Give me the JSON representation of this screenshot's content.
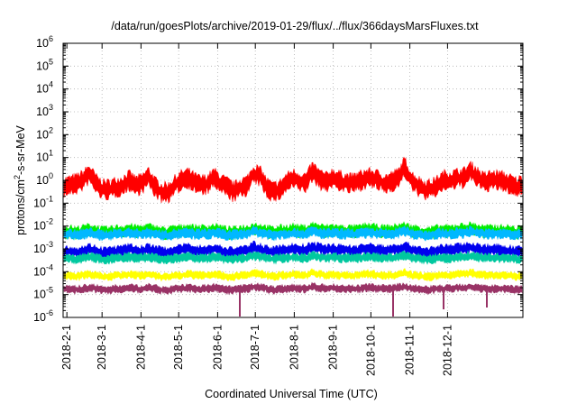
{
  "chart_data": {
    "type": "line",
    "title": "/data/run/goesPlots/archive/2019-01-29/flux/../flux/366daysMarsFluxes.txt",
    "xlabel": "Coordinated Universal Time (UTC)",
    "ylabel": "protons/cm²-s-sr-MeV",
    "ylabel_parts": {
      "pre": "protons/cm",
      "sup": "2",
      "post": "-s-sr-MeV"
    },
    "y_scale": "log",
    "ylim": [
      1e-06,
      1000000.0
    ],
    "y_ticks": [
      {
        "value": 1e-06,
        "base": "10",
        "exp": "-6"
      },
      {
        "value": 1e-05,
        "base": "10",
        "exp": "-5"
      },
      {
        "value": 0.0001,
        "base": "10",
        "exp": "-4"
      },
      {
        "value": 0.001,
        "base": "10",
        "exp": "-3"
      },
      {
        "value": 0.01,
        "base": "10",
        "exp": "-2"
      },
      {
        "value": 0.1,
        "base": "10",
        "exp": "-1"
      },
      {
        "value": 1.0,
        "base": "10",
        "exp": "0"
      },
      {
        "value": 10.0,
        "base": "10",
        "exp": "1"
      },
      {
        "value": 100.0,
        "base": "10",
        "exp": "2"
      },
      {
        "value": 1000.0,
        "base": "10",
        "exp": "3"
      },
      {
        "value": 10000.0,
        "base": "10",
        "exp": "4"
      },
      {
        "value": 100000.0,
        "base": "10",
        "exp": "5"
      },
      {
        "value": 1000000.0,
        "base": "10",
        "exp": "6"
      }
    ],
    "xlim": [
      "2018-01-29",
      "2019-01-30"
    ],
    "x_ticks": [
      "2018-2-1",
      "2018-3-1",
      "2018-4-1",
      "2018-5-1",
      "2018-6-1",
      "2018-7-1",
      "2018-8-1",
      "2018-9-1",
      "2018-10-1",
      "2018-11-1",
      "2018-12-1"
    ],
    "grid": true,
    "legend": "none",
    "series": [
      {
        "color": "#ff0000",
        "values": [
          0.5,
          0.6,
          0.7,
          1.0,
          2.0,
          0.7,
          0.4,
          0.4,
          0.5,
          0.6,
          1.0,
          0.6,
          0.7,
          1.5,
          0.5,
          0.3,
          0.3,
          0.6,
          1.0,
          1.3,
          0.8,
          0.6,
          0.7,
          1.3,
          0.7,
          0.5,
          0.3,
          0.5,
          0.6,
          2.0,
          1.5,
          0.5,
          0.3,
          0.4,
          0.8,
          1.2,
          0.9,
          0.8,
          2.5,
          1.2,
          0.8,
          1.3,
          1.0,
          0.8,
          0.7,
          0.9,
          1.2,
          1.2,
          1.0,
          0.7,
          0.9,
          1.2,
          4.0,
          1.0,
          0.6,
          0.4,
          0.4,
          0.6,
          1.0,
          1.0,
          1.2,
          1.3,
          2.5,
          1.5,
          0.8,
          1.0,
          1.0,
          0.9,
          0.7,
          0.5,
          0.7
        ]
      },
      {
        "color": "#00ee00",
        "values": [
          0.005,
          0.006,
          0.005,
          0.006,
          0.007,
          0.006,
          0.005,
          0.005,
          0.006,
          0.006,
          0.007,
          0.006,
          0.006,
          0.007,
          0.006,
          0.005,
          0.005,
          0.006,
          0.006,
          0.007,
          0.006,
          0.006,
          0.006,
          0.007,
          0.006,
          0.005,
          0.005,
          0.006,
          0.006,
          0.008,
          0.007,
          0.006,
          0.005,
          0.006,
          0.006,
          0.007,
          0.006,
          0.006,
          0.008,
          0.007,
          0.006,
          0.007,
          0.006,
          0.006,
          0.006,
          0.006,
          0.007,
          0.007,
          0.006,
          0.006,
          0.006,
          0.007,
          0.008,
          0.006,
          0.006,
          0.005,
          0.005,
          0.006,
          0.006,
          0.006,
          0.007,
          0.007,
          0.008,
          0.007,
          0.006,
          0.006,
          0.006,
          0.006,
          0.006,
          0.005,
          0.006
        ]
      },
      {
        "color": "#00b8ff",
        "values": [
          0.004,
          0.0045,
          0.004,
          0.0045,
          0.005,
          0.0045,
          0.004,
          0.004,
          0.0045,
          0.0045,
          0.005,
          0.0045,
          0.0045,
          0.005,
          0.0045,
          0.004,
          0.004,
          0.0045,
          0.0045,
          0.005,
          0.0045,
          0.0045,
          0.0045,
          0.005,
          0.0045,
          0.004,
          0.004,
          0.0045,
          0.0045,
          0.006,
          0.005,
          0.0045,
          0.004,
          0.0045,
          0.0045,
          0.005,
          0.0045,
          0.0045,
          0.006,
          0.005,
          0.0045,
          0.005,
          0.0045,
          0.0045,
          0.0045,
          0.0045,
          0.005,
          0.005,
          0.0045,
          0.0045,
          0.0045,
          0.005,
          0.006,
          0.0045,
          0.0045,
          0.004,
          0.004,
          0.0045,
          0.0045,
          0.0045,
          0.005,
          0.005,
          0.006,
          0.005,
          0.0045,
          0.0045,
          0.0045,
          0.0045,
          0.0045,
          0.004,
          0.0045
        ]
      },
      {
        "color": "#ffffff",
        "values": [
          0.0012,
          0.0015,
          0.0013,
          0.0016,
          0.002,
          0.0016,
          0.0012,
          0.0012,
          0.0014,
          0.0015,
          0.0018,
          0.0015,
          0.0015,
          0.002,
          0.0015,
          0.0012,
          0.0012,
          0.0014,
          0.0016,
          0.002,
          0.0016,
          0.0015,
          0.0015,
          0.0018,
          0.0015,
          0.0013,
          0.0012,
          0.0014,
          0.0015,
          0.0022,
          0.002,
          0.0015,
          0.0013,
          0.0014,
          0.0016,
          0.002,
          0.0017,
          0.0016,
          0.0025,
          0.002,
          0.0016,
          0.0018,
          0.0017,
          0.0016,
          0.0015,
          0.0016,
          0.0018,
          0.0018,
          0.0016,
          0.0015,
          0.0016,
          0.0018,
          0.0022,
          0.0016,
          0.0014,
          0.0013,
          0.0013,
          0.0015,
          0.0016,
          0.0016,
          0.0018,
          0.0018,
          0.0022,
          0.0019,
          0.0016,
          0.0016,
          0.0016,
          0.0015,
          0.0015,
          0.0013,
          0.0015
        ]
      },
      {
        "color": "#0000ee",
        "values": [
          0.0007,
          0.0008,
          0.0007,
          0.0008,
          0.001,
          0.0008,
          0.0007,
          0.0007,
          0.0008,
          0.0008,
          0.001,
          0.0008,
          0.0008,
          0.001,
          0.0008,
          0.0007,
          0.0007,
          0.0008,
          0.0009,
          0.001,
          0.0009,
          0.0008,
          0.0008,
          0.001,
          0.0008,
          0.0007,
          0.0007,
          0.0008,
          0.0008,
          0.0012,
          0.001,
          0.0008,
          0.0007,
          0.0008,
          0.0009,
          0.001,
          0.0009,
          0.0009,
          0.0012,
          0.001,
          0.0009,
          0.001,
          0.0009,
          0.0009,
          0.0008,
          0.0009,
          0.001,
          0.001,
          0.0009,
          0.0008,
          0.0009,
          0.001,
          0.0012,
          0.0009,
          0.0008,
          0.0007,
          0.0007,
          0.0008,
          0.0009,
          0.0009,
          0.001,
          0.001,
          0.0012,
          0.001,
          0.0009,
          0.0009,
          0.0009,
          0.0008,
          0.0008,
          0.0007,
          0.0008
        ]
      },
      {
        "color": "#00c8a0",
        "values": [
          0.00035,
          0.0004,
          0.00035,
          0.0004,
          0.00045,
          0.0004,
          0.00035,
          0.00035,
          0.0004,
          0.0004,
          0.00045,
          0.0004,
          0.0004,
          0.00045,
          0.0004,
          0.00035,
          0.00035,
          0.0004,
          0.0004,
          0.00045,
          0.0004,
          0.0004,
          0.0004,
          0.00045,
          0.0004,
          0.00035,
          0.00035,
          0.0004,
          0.0004,
          0.0005,
          0.00045,
          0.0004,
          0.00035,
          0.0004,
          0.0004,
          0.00045,
          0.0004,
          0.0004,
          0.0005,
          0.00045,
          0.0004,
          0.00045,
          0.0004,
          0.0004,
          0.0004,
          0.0004,
          0.00045,
          0.00045,
          0.0004,
          0.0004,
          0.0004,
          0.00045,
          0.0005,
          0.0004,
          0.0004,
          0.00035,
          0.00035,
          0.0004,
          0.0004,
          0.0004,
          0.00045,
          0.00045,
          0.0005,
          0.00045,
          0.0004,
          0.0004,
          0.0004,
          0.0004,
          0.0004,
          0.00035,
          0.0004
        ]
      },
      {
        "color": "#ffff00",
        "values": [
          6e-05,
          7e-05,
          6e-05,
          7e-05,
          8e-05,
          7e-05,
          6e-05,
          6e-05,
          7e-05,
          7e-05,
          8e-05,
          7e-05,
          7e-05,
          8e-05,
          7e-05,
          6e-05,
          6e-05,
          7e-05,
          7e-05,
          8e-05,
          7e-05,
          7e-05,
          7e-05,
          8e-05,
          7e-05,
          6e-05,
          6e-05,
          7e-05,
          7e-05,
          9e-05,
          8e-05,
          7e-05,
          6e-05,
          7e-05,
          7e-05,
          8e-05,
          7e-05,
          7e-05,
          9e-05,
          8e-05,
          7e-05,
          8e-05,
          7e-05,
          7e-05,
          7e-05,
          7e-05,
          8e-05,
          8e-05,
          7e-05,
          7e-05,
          7e-05,
          8e-05,
          9e-05,
          7e-05,
          7e-05,
          6e-05,
          6e-05,
          7e-05,
          7e-05,
          7e-05,
          8e-05,
          8e-05,
          9e-05,
          8e-05,
          7e-05,
          7e-05,
          7e-05,
          7e-05,
          7e-05,
          6e-05,
          7e-05
        ]
      },
      {
        "color": "#993366",
        "values": [
          1.6e-05,
          1.8e-05,
          1.6e-05,
          1.8e-05,
          2e-05,
          1.8e-05,
          1.6e-05,
          1.6e-05,
          1.8e-05,
          1.8e-05,
          2e-05,
          1.8e-05,
          1.8e-05,
          2e-05,
          1.8e-05,
          1.6e-05,
          1.6e-05,
          1.8e-05,
          1.8e-05,
          2e-05,
          1.8e-05,
          1.8e-05,
          1.8e-05,
          2e-05,
          1.8e-05,
          1.6e-05,
          1.6e-05,
          1.8e-05,
          1.8e-05,
          2.2e-05,
          2e-05,
          1.8e-05,
          1.6e-05,
          1.8e-05,
          1.8e-05,
          2e-05,
          1.8e-05,
          1.8e-05,
          2.2e-05,
          2e-05,
          1.8e-05,
          2e-05,
          1.8e-05,
          1.8e-05,
          1.8e-05,
          1.8e-05,
          2e-05,
          2e-05,
          1.8e-05,
          1.8e-05,
          1.8e-05,
          2e-05,
          2.2e-05,
          1.8e-05,
          1.8e-05,
          1.6e-05,
          1.6e-05,
          1.8e-05,
          1.8e-05,
          1.8e-05,
          2e-05,
          2e-05,
          2.2e-05,
          2e-05,
          1.8e-05,
          1.8e-05,
          1.8e-05,
          1.8e-05,
          1.8e-05,
          1.6e-05,
          1.8e-05
        ]
      }
    ]
  }
}
